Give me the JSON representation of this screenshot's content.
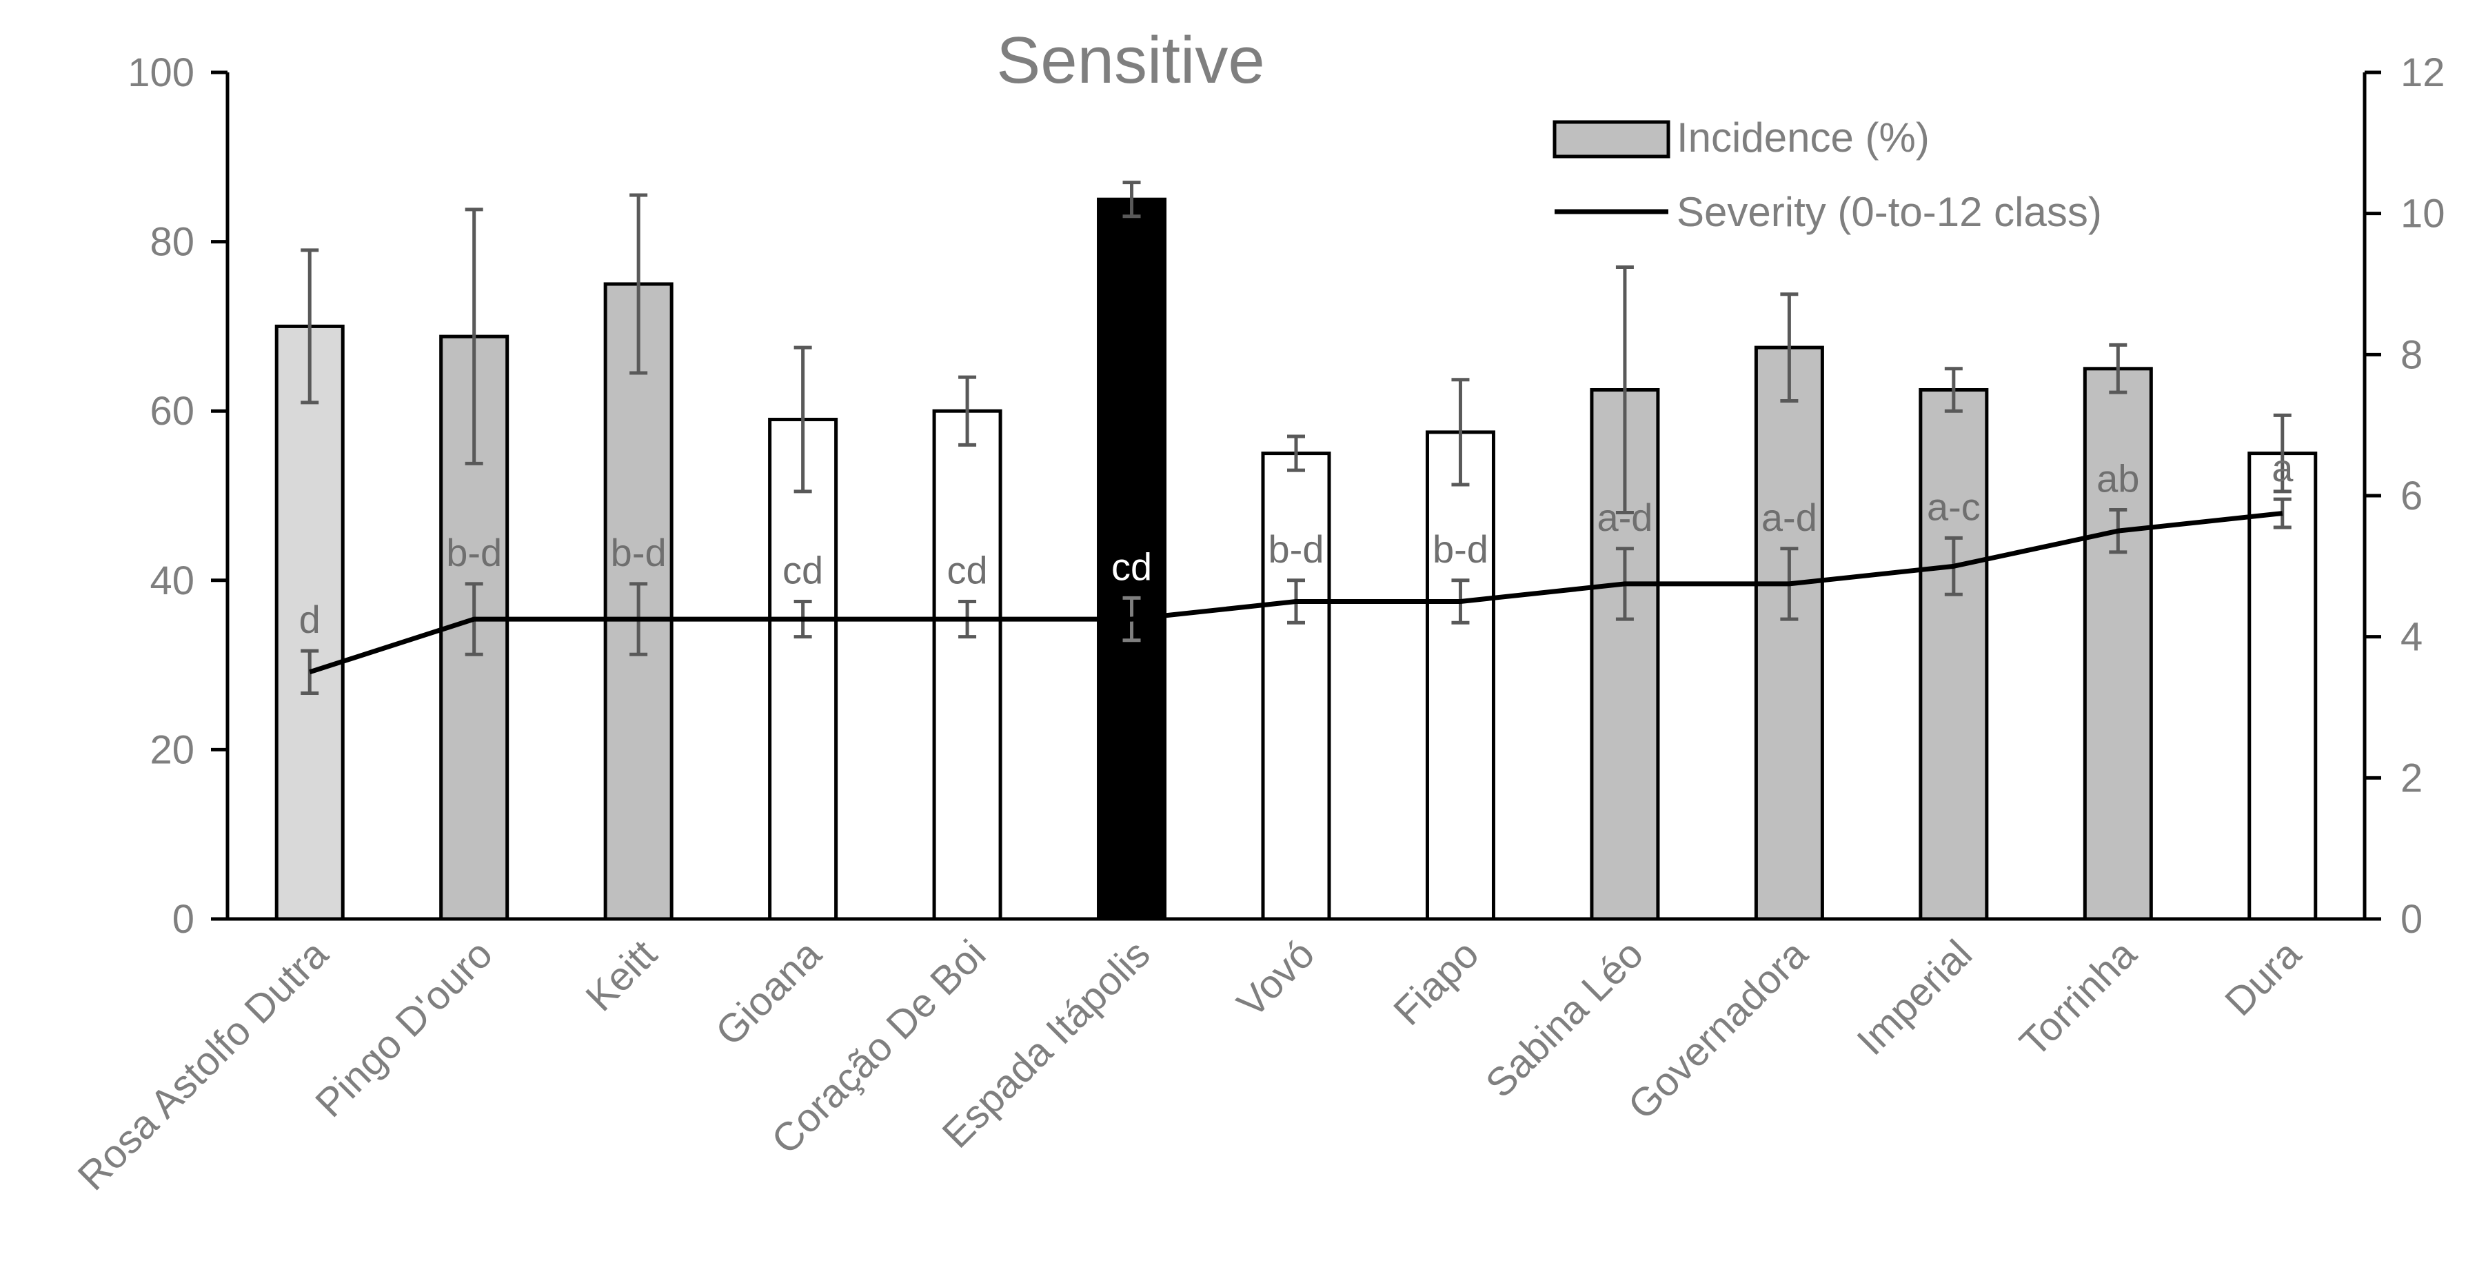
{
  "chart_data": {
    "type": "bar",
    "title": "Sensitive",
    "categories": [
      "Rosa Astolfo Dutra",
      "Pingo D'ouro",
      "Keitt",
      "Gioana",
      "Coração De Boi",
      "Espada  Itápolis",
      "Vovó",
      "Fiapo",
      "Sabina Léo",
      "Governadora",
      "Imperial",
      "Torrinha",
      "Dura"
    ],
    "y_left": {
      "ticks": [
        "0",
        "20",
        "40",
        "60",
        "80",
        "100"
      ],
      "ylim": [
        0,
        100
      ]
    },
    "y_right": {
      "ticks": [
        "0",
        "2",
        "4",
        "6",
        "8",
        "10",
        "12"
      ],
      "ylim": [
        0,
        12
      ]
    },
    "legend": {
      "position": "top-right",
      "incidence_label": "Incidence (%)",
      "severity_label": "Severity (0-to-12 class)"
    },
    "series": [
      {
        "name": "Incidence (%)",
        "kind": "bar",
        "axis": "left",
        "values": [
          70,
          68.8,
          75,
          59,
          60,
          85,
          55,
          57.5,
          62.5,
          67.5,
          62.5,
          65,
          55
        ],
        "error": [
          9,
          15,
          10.5,
          8.5,
          4,
          2,
          2,
          6.2,
          14.5,
          6.3,
          2.5,
          2.8,
          4.5
        ],
        "bar_colors": [
          "#d9d9d9",
          "#bfbfbf",
          "#bfbfbf",
          "#ffffff",
          "#ffffff",
          "#000000",
          "#ffffff",
          "#ffffff",
          "#bfbfbf",
          "#bfbfbf",
          "#bfbfbf",
          "#bfbfbf",
          "#ffffff"
        ]
      },
      {
        "name": "Severity (0-to-12 class)",
        "kind": "line",
        "axis": "right",
        "values": [
          3.5,
          4.25,
          4.25,
          4.25,
          4.25,
          4.25,
          4.5,
          4.5,
          4.75,
          4.75,
          5.0,
          5.5,
          5.75
        ],
        "error": [
          0.3,
          0.5,
          0.5,
          0.25,
          0.25,
          0.3,
          0.3,
          0.3,
          0.5,
          0.5,
          0.4,
          0.3,
          0.2
        ]
      }
    ],
    "letters": [
      "d",
      "b-d",
      "b-d",
      "cd",
      "cd",
      "cd",
      "b-d",
      "b-d",
      "a-d",
      "a-d",
      "a-c",
      "ab",
      "a"
    ],
    "letter_colors": [
      "#6f6f6f",
      "#6f6f6f",
      "#6f6f6f",
      "#6f6f6f",
      "#6f6f6f",
      "#ffffff",
      "#6f6f6f",
      "#6f6f6f",
      "#6f6f6f",
      "#6f6f6f",
      "#6f6f6f",
      "#6f6f6f",
      "#6f6f6f"
    ]
  }
}
